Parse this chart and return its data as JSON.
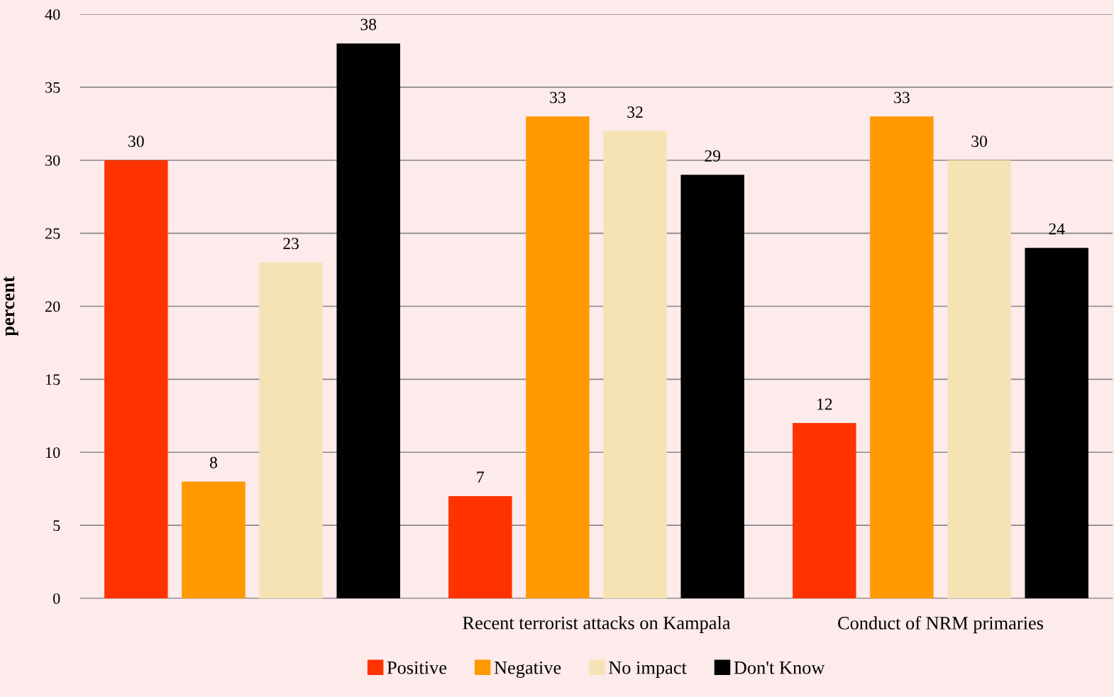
{
  "chart_data": {
    "type": "bar",
    "ylabel": "percent",
    "categories": [
      null,
      "Recent terrorist attacks on Kampala",
      "Conduct of NRM primaries"
    ],
    "series": [
      {
        "name": "Positive",
        "color": "#ff3300",
        "values": [
          30,
          7,
          12
        ]
      },
      {
        "name": "Negative",
        "color": "#ff9900",
        "values": [
          8,
          33,
          33
        ]
      },
      {
        "name": "No impact",
        "color": "#f5e3b3",
        "values": [
          23,
          32,
          30
        ]
      },
      {
        "name": "Don't Know",
        "color": "#000000",
        "values": [
          38,
          29,
          24
        ]
      }
    ],
    "ylim": [
      0,
      40
    ],
    "yticks": [
      0,
      5,
      10,
      15,
      20,
      25,
      30,
      35,
      40
    ],
    "grid": "y",
    "legend": "bottom",
    "data_labels": true
  }
}
